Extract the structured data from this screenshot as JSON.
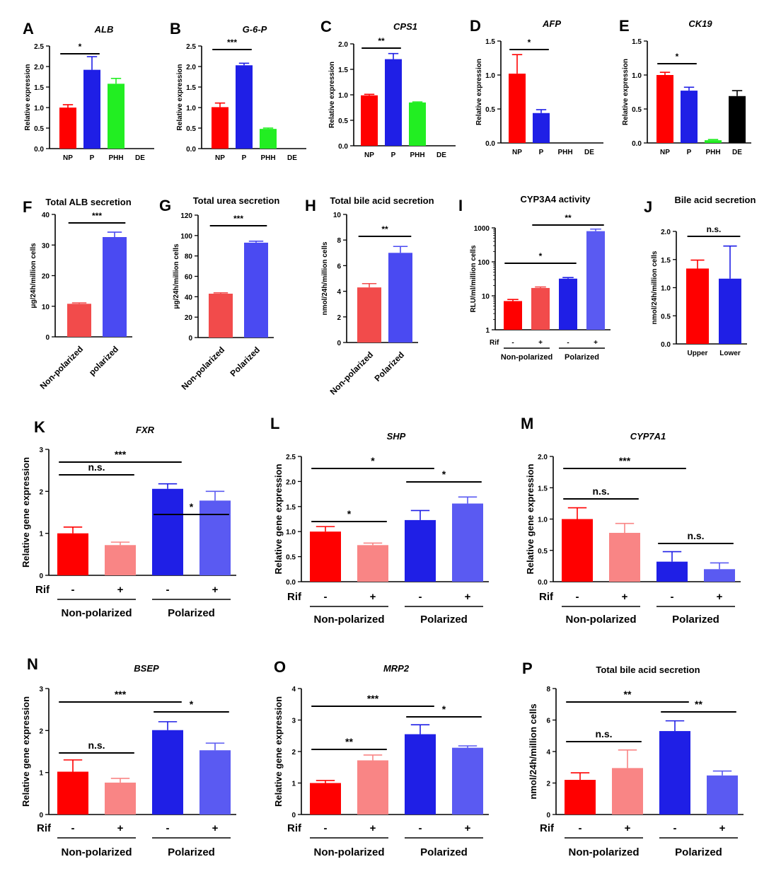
{
  "chart_data": [
    {
      "letter": "A",
      "title": "ALB",
      "italic": true,
      "type": "bar",
      "ylabel": "Relative expression",
      "ylim": [
        0,
        2.5
      ],
      "ticks": [
        0,
        0.5,
        1.0,
        1.5,
        2.0,
        2.5
      ],
      "tick_labels": [
        "0.0",
        "0.5",
        "1.0",
        "1.5",
        "2.0",
        "2.5"
      ],
      "categories": [
        "NP",
        "P",
        "PHH",
        "DE"
      ],
      "values": [
        1.0,
        1.92,
        1.58,
        0
      ],
      "errors": [
        0.07,
        0.32,
        0.13,
        0
      ],
      "colors": [
        "#ff0000",
        "#1f1fe6",
        "#22ee22",
        "#000000"
      ],
      "sig": [
        {
          "from": 0,
          "to": 1,
          "label": "*"
        }
      ]
    },
    {
      "letter": "B",
      "title": "G-6-P",
      "italic": true,
      "type": "bar",
      "ylabel": "Relative expression",
      "ylim": [
        0,
        2.5
      ],
      "ticks": [
        0,
        0.5,
        1.0,
        1.5,
        2.0,
        2.5
      ],
      "tick_labels": [
        "0.0",
        "0.5",
        "1.0",
        "1.5",
        "2.0",
        "2.5"
      ],
      "categories": [
        "NP",
        "P",
        "PHH",
        "DE"
      ],
      "values": [
        1.01,
        2.03,
        0.48,
        0
      ],
      "errors": [
        0.1,
        0.05,
        0.02,
        0
      ],
      "colors": [
        "#ff0000",
        "#1f1fe6",
        "#22ee22",
        "#000000"
      ],
      "sig": [
        {
          "from": 0,
          "to": 1,
          "label": "***"
        }
      ]
    },
    {
      "letter": "C",
      "title": "CPS1",
      "italic": true,
      "type": "bar",
      "ylabel": "Relative expression",
      "ylim": [
        0,
        2.0
      ],
      "ticks": [
        0,
        0.5,
        1.0,
        1.5,
        2.0
      ],
      "tick_labels": [
        "0.0",
        "0.5",
        "1.0",
        "1.5",
        "2.0"
      ],
      "categories": [
        "NP",
        "P",
        "PHH",
        "DE"
      ],
      "values": [
        0.99,
        1.7,
        0.85,
        0
      ],
      "errors": [
        0.02,
        0.11,
        0.01,
        0
      ],
      "colors": [
        "#ff0000",
        "#1f1fe6",
        "#22ee22",
        "#000000"
      ],
      "sig": [
        {
          "from": 0,
          "to": 1,
          "label": "**"
        }
      ]
    },
    {
      "letter": "D",
      "title": "AFP",
      "italic": true,
      "type": "bar",
      "ylabel": "Relative expression",
      "ylim": [
        0,
        1.5
      ],
      "ticks": [
        0,
        0.5,
        1.0,
        1.5
      ],
      "tick_labels": [
        "0.0",
        "0.5",
        "1.0",
        "1.5"
      ],
      "categories": [
        "NP",
        "P",
        "PHH",
        "DE"
      ],
      "values": [
        1.02,
        0.44,
        0,
        0
      ],
      "errors": [
        0.28,
        0.05,
        0,
        0
      ],
      "colors": [
        "#ff0000",
        "#1f1fe6",
        "#22ee22",
        "#000000"
      ],
      "sig": [
        {
          "from": 0,
          "to": 1,
          "label": "*"
        }
      ]
    },
    {
      "letter": "E",
      "title": "CK19",
      "italic": true,
      "type": "bar",
      "ylabel": "Relative expression",
      "ylim": [
        0,
        1.5
      ],
      "ticks": [
        0,
        0.5,
        1.0,
        1.5
      ],
      "tick_labels": [
        "0.0",
        "0.5",
        "1.0",
        "1.5"
      ],
      "categories": [
        "NP",
        "P",
        "PHH",
        "DE"
      ],
      "values": [
        1.0,
        0.77,
        0.04,
        0.69
      ],
      "errors": [
        0.04,
        0.05,
        0.01,
        0.08
      ],
      "colors": [
        "#ff0000",
        "#1f1fe6",
        "#22ee22",
        "#000000"
      ],
      "sig": [
        {
          "from": 0,
          "to": 1,
          "label": "*"
        }
      ]
    },
    {
      "letter": "F",
      "title": "Total ALB secretion",
      "italic": false,
      "type": "bar",
      "ylabel": "μg/24h/million cells",
      "ylim": [
        0,
        40
      ],
      "ticks": [
        0,
        10,
        20,
        30,
        40
      ],
      "tick_labels": [
        "0",
        "10",
        "20",
        "30",
        "40"
      ],
      "categories": [
        "Non-polarized",
        "polarized"
      ],
      "values": [
        10.8,
        32.6
      ],
      "errors": [
        0.3,
        1.6
      ],
      "colors": [
        "#f24b4b",
        "#4a4af2"
      ],
      "sig": [
        {
          "from": 0,
          "to": 1,
          "label": "***"
        }
      ]
    },
    {
      "letter": "G",
      "title": "Total urea secretion",
      "italic": false,
      "type": "bar",
      "ylabel": "μg/24h/million cells",
      "ylim": [
        0,
        120
      ],
      "ticks": [
        0,
        20,
        40,
        60,
        80,
        100,
        120
      ],
      "tick_labels": [
        "0",
        "20",
        "40",
        "60",
        "80",
        "100",
        "120"
      ],
      "categories": [
        "Non-polarized",
        "Polarized"
      ],
      "values": [
        43,
        93
      ],
      "errors": [
        0.8,
        1.5
      ],
      "colors": [
        "#f24b4b",
        "#4a4af2"
      ],
      "sig": [
        {
          "from": 0,
          "to": 1,
          "label": "***"
        }
      ]
    },
    {
      "letter": "H",
      "title": "Total bile acid secretion",
      "italic": false,
      "type": "bar",
      "ylabel": "nmol/24h/million cells",
      "ylim": [
        0,
        10
      ],
      "ticks": [
        0,
        2,
        4,
        6,
        8,
        10
      ],
      "tick_labels": [
        "0",
        "2",
        "4",
        "6",
        "8",
        "10"
      ],
      "categories": [
        "Non-polarized",
        "Polarized"
      ],
      "values": [
        4.3,
        7.0
      ],
      "errors": [
        0.3,
        0.5
      ],
      "colors": [
        "#f24b4b",
        "#4a4af2"
      ],
      "sig": [
        {
          "from": 0,
          "to": 1,
          "label": "**"
        }
      ]
    },
    {
      "letter": "I",
      "title": "CYP3A4 activity",
      "italic": false,
      "type": "bar",
      "scale": "log",
      "ylabel": "RLU/ml/million cells",
      "ylim": [
        1,
        1000
      ],
      "ticks": [
        1,
        10,
        100,
        1000
      ],
      "tick_labels": [
        "1",
        "10",
        "100",
        "1000"
      ],
      "values": [
        7,
        17,
        32,
        800
      ],
      "errors": [
        0.8,
        1.2,
        2.5,
        120
      ],
      "colors": [
        "#ff0000",
        "#f24b4b",
        "#1f1fe6",
        "#5a5af2"
      ],
      "rif": [
        "-",
        "+",
        "-",
        "+"
      ],
      "groups": [
        "Non-polarized",
        "Polarized"
      ],
      "sig": [
        {
          "from": 0,
          "to": 2,
          "label": "*"
        },
        {
          "from": 1,
          "to": 3,
          "label": "**"
        }
      ]
    },
    {
      "letter": "J",
      "title": "Bile acid secretion",
      "italic": false,
      "type": "bar",
      "ylabel": "nmol/24h/million cells",
      "ylim": [
        0,
        2.0
      ],
      "ticks": [
        0,
        0.5,
        1.0,
        1.5,
        2.0
      ],
      "tick_labels": [
        "0.0",
        "0.5",
        "1.0",
        "1.5",
        "2.0"
      ],
      "categories": [
        "Upper",
        "Lower"
      ],
      "values": [
        1.34,
        1.16
      ],
      "errors": [
        0.15,
        0.58
      ],
      "colors": [
        "#ff0000",
        "#1f1fe6"
      ],
      "sig": [
        {
          "from": 0,
          "to": 1,
          "label": "n.s."
        }
      ]
    },
    {
      "letter": "K",
      "title": "FXR",
      "italic": true,
      "type": "bar",
      "ylabel": "Relative gene expression",
      "ylim": [
        0,
        3
      ],
      "ticks": [
        0,
        1,
        2,
        3
      ],
      "tick_labels": [
        "0",
        "1",
        "2",
        "3"
      ],
      "values": [
        1.0,
        0.72,
        2.06,
        1.78
      ],
      "errors": [
        0.15,
        0.07,
        0.12,
        0.22
      ],
      "colors": [
        "#ff0000",
        "#f98585",
        "#1f1fe6",
        "#5a5af2"
      ],
      "rif": [
        "-",
        "+",
        "-",
        "+"
      ],
      "groups": [
        "Non-polarized",
        "Polarized"
      ],
      "sig": [
        {
          "from": 0,
          "to": 2,
          "label": "***"
        },
        {
          "from": 0,
          "to": 1,
          "label": "n.s."
        },
        {
          "from": 2,
          "to": 3,
          "label": "*"
        }
      ]
    },
    {
      "letter": "L",
      "title": "SHP",
      "italic": true,
      "type": "bar",
      "ylabel": "Relative gene expression",
      "ylim": [
        0,
        2.5
      ],
      "ticks": [
        0,
        0.5,
        1.0,
        1.5,
        2.0,
        2.5
      ],
      "tick_labels": [
        "0.0",
        "0.5",
        "1.0",
        "1.5",
        "2.0",
        "2.5"
      ],
      "values": [
        1.0,
        0.73,
        1.23,
        1.56
      ],
      "errors": [
        0.1,
        0.04,
        0.19,
        0.13
      ],
      "colors": [
        "#ff0000",
        "#f98585",
        "#1f1fe6",
        "#5a5af2"
      ],
      "rif": [
        "-",
        "+",
        "-",
        "+"
      ],
      "groups": [
        "Non-polarized",
        "Polarized"
      ],
      "sig": [
        {
          "from": 0,
          "to": 2,
          "label": "*"
        },
        {
          "from": 0,
          "to": 1,
          "label": "*"
        },
        {
          "from": 2,
          "to": 3,
          "label": "*"
        }
      ]
    },
    {
      "letter": "M",
      "title": "CYP7A1",
      "italic": true,
      "type": "bar",
      "ylabel": "Relative gene expression",
      "ylim": [
        0,
        2.0
      ],
      "ticks": [
        0,
        0.5,
        1.0,
        1.5,
        2.0
      ],
      "tick_labels": [
        "0.0",
        "0.5",
        "1.0",
        "1.5",
        "2.0"
      ],
      "values": [
        1.0,
        0.78,
        0.32,
        0.2
      ],
      "errors": [
        0.18,
        0.15,
        0.16,
        0.1
      ],
      "colors": [
        "#ff0000",
        "#f98585",
        "#1f1fe6",
        "#5a5af2"
      ],
      "rif": [
        "-",
        "+",
        "-",
        "+"
      ],
      "groups": [
        "Non-polarized",
        "Polarized"
      ],
      "sig": [
        {
          "from": 0,
          "to": 2,
          "label": "***"
        },
        {
          "from": 0,
          "to": 1,
          "label": "n.s."
        },
        {
          "from": 2,
          "to": 3,
          "label": "n.s."
        }
      ]
    },
    {
      "letter": "N",
      "title": "BSEP",
      "italic": true,
      "type": "bar",
      "ylabel": "Relative gene expression",
      "ylim": [
        0,
        3
      ],
      "ticks": [
        0,
        1,
        2,
        3
      ],
      "tick_labels": [
        "0",
        "1",
        "2",
        "3"
      ],
      "values": [
        1.02,
        0.76,
        2.01,
        1.53
      ],
      "errors": [
        0.28,
        0.1,
        0.2,
        0.17
      ],
      "colors": [
        "#ff0000",
        "#f98585",
        "#1f1fe6",
        "#5a5af2"
      ],
      "rif": [
        "-",
        "+",
        "-",
        "+"
      ],
      "groups": [
        "Non-polarized",
        "Polarized"
      ],
      "sig": [
        {
          "from": 0,
          "to": 2,
          "label": "***"
        },
        {
          "from": 0,
          "to": 1,
          "label": "n.s."
        },
        {
          "from": 2,
          "to": 3,
          "label": "*"
        }
      ]
    },
    {
      "letter": "O",
      "title": "MRP2",
      "italic": true,
      "type": "bar",
      "ylabel": "Relative gene expression",
      "ylim": [
        0,
        4
      ],
      "ticks": [
        0,
        1,
        2,
        3,
        4
      ],
      "tick_labels": [
        "0",
        "1",
        "2",
        "3",
        "4"
      ],
      "values": [
        1.0,
        1.72,
        2.55,
        2.12
      ],
      "errors": [
        0.08,
        0.17,
        0.3,
        0.06
      ],
      "colors": [
        "#ff0000",
        "#f98585",
        "#1f1fe6",
        "#5a5af2"
      ],
      "rif": [
        "-",
        "+",
        "-",
        "+"
      ],
      "groups": [
        "Non-polarized",
        "Polarized"
      ],
      "sig": [
        {
          "from": 0,
          "to": 2,
          "label": "***"
        },
        {
          "from": 0,
          "to": 1,
          "label": "**"
        },
        {
          "from": 2,
          "to": 3,
          "label": "*"
        }
      ]
    },
    {
      "letter": "P",
      "title": "Total bile acid secretion",
      "italic": false,
      "type": "bar",
      "ylabel": "nmol/24h/million cells",
      "ylim": [
        0,
        8
      ],
      "ticks": [
        0,
        2,
        4,
        6,
        8
      ],
      "tick_labels": [
        "0",
        "2",
        "4",
        "6",
        "8"
      ],
      "values": [
        2.2,
        2.95,
        5.3,
        2.48
      ],
      "errors": [
        0.45,
        1.15,
        0.65,
        0.28
      ],
      "colors": [
        "#ff0000",
        "#f98585",
        "#1f1fe6",
        "#5a5af2"
      ],
      "rif": [
        "-",
        "+",
        "-",
        "+"
      ],
      "groups": [
        "Non-polarized",
        "Polarized"
      ],
      "sig": [
        {
          "from": 0,
          "to": 2,
          "label": "**"
        },
        {
          "from": 0,
          "to": 1,
          "label": "n.s."
        },
        {
          "from": 2,
          "to": 3,
          "label": "**"
        }
      ]
    }
  ],
  "rif_label": "Rif"
}
